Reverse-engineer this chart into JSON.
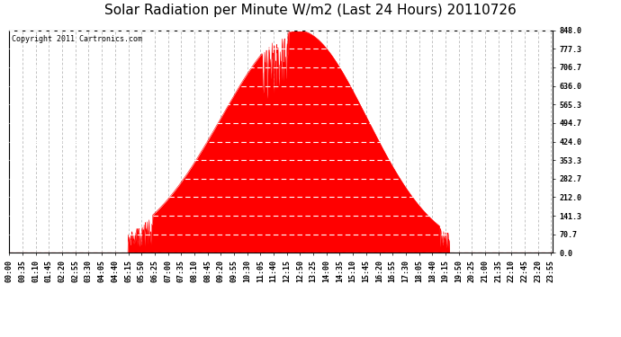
{
  "title": "Solar Radiation per Minute W/m2 (Last 24 Hours) 20110726",
  "copyright": "Copyright 2011 Cartronics.com",
  "fill_color": "#FF0000",
  "background_color": "#FFFFFF",
  "ytick_labels": [
    "0.0",
    "70.7",
    "141.3",
    "212.0",
    "282.7",
    "353.3",
    "424.0",
    "494.7",
    "565.3",
    "636.0",
    "706.7",
    "777.3",
    "848.0"
  ],
  "ytick_values": [
    0.0,
    70.7,
    141.3,
    212.0,
    282.7,
    353.3,
    424.0,
    494.7,
    565.3,
    636.0,
    706.7,
    777.3,
    848.0
  ],
  "ymax": 848.0,
  "ymin": 0.0,
  "total_minutes": 1440,
  "peak_minute": 765,
  "peak_value": 848.0,
  "sunrise_minute": 315,
  "sunset_minute": 1165,
  "title_fontsize": 11,
  "copyright_fontsize": 6,
  "tick_fontsize": 6,
  "xtick_step": 35
}
